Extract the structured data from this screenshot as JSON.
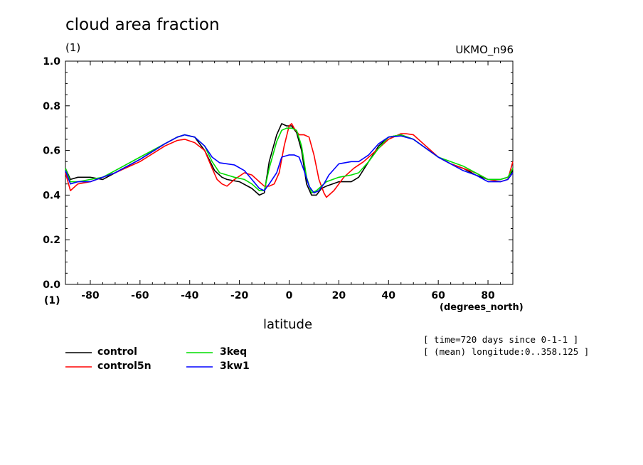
{
  "header": {
    "title": "cloud area fraction",
    "units_top": "(1)",
    "model": "UKMO_n96",
    "units_bottom": "(1)",
    "x_units": "(degrees_north)"
  },
  "info": {
    "time": "[ time=720 days since 0-1-1 ]",
    "longitude": "[ (mean) longitude:0..358.125 ]"
  },
  "chart_data": {
    "type": "line",
    "title": "cloud area fraction",
    "xlabel": "latitude",
    "ylabel": "",
    "xlim": [
      -90,
      90
    ],
    "ylim": [
      0,
      1
    ],
    "x_ticks": [
      -80,
      -60,
      -40,
      -20,
      0,
      20,
      40,
      60,
      80
    ],
    "y_ticks": [
      0.0,
      0.2,
      0.4,
      0.6,
      0.8,
      1.0
    ],
    "x_tick_labels": [
      "-80",
      "-60",
      "-40",
      "-20",
      "0",
      "20",
      "40",
      "60",
      "80"
    ],
    "y_tick_labels": [
      "0.0",
      "0.2",
      "0.4",
      "0.6",
      "0.8",
      "1.0"
    ],
    "grid": false,
    "legend_position": "bottom-left",
    "series": [
      {
        "name": "control",
        "color": "#000000",
        "x": [
          -90,
          -88,
          -85,
          -80,
          -75,
          -70,
          -60,
          -50,
          -45,
          -42,
          -38,
          -34,
          -30,
          -27,
          -25,
          -20,
          -15,
          -12,
          -10,
          -8,
          -5,
          -3,
          -1,
          1,
          3,
          5,
          7,
          9,
          11,
          13,
          15,
          20,
          25,
          28,
          32,
          36,
          40,
          45,
          50,
          55,
          60,
          65,
          70,
          75,
          80,
          85,
          88,
          90
        ],
        "y": [
          0.52,
          0.47,
          0.48,
          0.48,
          0.47,
          0.5,
          0.56,
          0.63,
          0.66,
          0.67,
          0.66,
          0.6,
          0.51,
          0.48,
          0.47,
          0.46,
          0.43,
          0.4,
          0.41,
          0.55,
          0.67,
          0.72,
          0.71,
          0.71,
          0.68,
          0.6,
          0.45,
          0.4,
          0.4,
          0.43,
          0.44,
          0.46,
          0.46,
          0.48,
          0.55,
          0.62,
          0.66,
          0.67,
          0.65,
          0.61,
          0.57,
          0.54,
          0.52,
          0.49,
          0.47,
          0.47,
          0.48,
          0.51
        ]
      },
      {
        "name": "control5n",
        "color": "#ff0000",
        "x": [
          -90,
          -88,
          -85,
          -80,
          -75,
          -70,
          -60,
          -50,
          -45,
          -42,
          -38,
          -34,
          -31,
          -29,
          -27,
          -25,
          -22,
          -18,
          -15,
          -12,
          -10,
          -8,
          -6,
          -4,
          -2,
          0,
          1,
          2,
          4,
          6,
          8,
          10,
          12,
          14,
          15,
          18,
          22,
          26,
          30,
          35,
          40,
          45,
          47,
          50,
          55,
          60,
          65,
          70,
          75,
          80,
          85,
          88,
          90
        ],
        "y": [
          0.5,
          0.42,
          0.45,
          0.46,
          0.48,
          0.5,
          0.55,
          0.62,
          0.645,
          0.65,
          0.635,
          0.6,
          0.52,
          0.47,
          0.45,
          0.44,
          0.47,
          0.5,
          0.49,
          0.46,
          0.44,
          0.44,
          0.45,
          0.5,
          0.62,
          0.71,
          0.72,
          0.7,
          0.67,
          0.67,
          0.66,
          0.58,
          0.47,
          0.41,
          0.39,
          0.42,
          0.48,
          0.52,
          0.55,
          0.6,
          0.65,
          0.675,
          0.675,
          0.67,
          0.62,
          0.57,
          0.54,
          0.52,
          0.5,
          0.47,
          0.46,
          0.47,
          0.55
        ]
      },
      {
        "name": "3keq",
        "color": "#00dd00",
        "x": [
          -90,
          -88,
          -85,
          -80,
          -75,
          -70,
          -60,
          -50,
          -45,
          -42,
          -38,
          -34,
          -31,
          -28,
          -25,
          -22,
          -18,
          -15,
          -12,
          -10,
          -8,
          -5,
          -3,
          -1,
          1,
          3,
          5,
          7,
          9,
          11,
          13,
          15,
          20,
          25,
          28,
          32,
          36,
          40,
          45,
          50,
          55,
          60,
          65,
          70,
          75,
          80,
          85,
          88,
          90
        ],
        "y": [
          0.52,
          0.46,
          0.46,
          0.47,
          0.48,
          0.51,
          0.57,
          0.63,
          0.66,
          0.67,
          0.66,
          0.62,
          0.55,
          0.5,
          0.49,
          0.48,
          0.47,
          0.45,
          0.42,
          0.42,
          0.52,
          0.64,
          0.69,
          0.7,
          0.7,
          0.69,
          0.62,
          0.48,
          0.41,
          0.42,
          0.44,
          0.46,
          0.48,
          0.49,
          0.5,
          0.55,
          0.61,
          0.66,
          0.67,
          0.65,
          0.61,
          0.57,
          0.55,
          0.53,
          0.5,
          0.47,
          0.47,
          0.48,
          0.52
        ]
      },
      {
        "name": "3kw1",
        "color": "#0000ff",
        "x": [
          -90,
          -88,
          -85,
          -80,
          -75,
          -70,
          -60,
          -50,
          -45,
          -42,
          -38,
          -34,
          -31,
          -28,
          -25,
          -22,
          -18,
          -15,
          -12,
          -10,
          -8,
          -5,
          -3,
          0,
          2,
          4,
          6,
          8,
          10,
          12,
          14,
          16,
          20,
          25,
          28,
          32,
          36,
          40,
          45,
          50,
          55,
          60,
          65,
          70,
          75,
          80,
          85,
          88,
          90
        ],
        "y": [
          0.51,
          0.45,
          0.46,
          0.46,
          0.48,
          0.5,
          0.56,
          0.63,
          0.66,
          0.67,
          0.66,
          0.62,
          0.57,
          0.545,
          0.54,
          0.535,
          0.51,
          0.47,
          0.43,
          0.42,
          0.45,
          0.5,
          0.57,
          0.58,
          0.58,
          0.57,
          0.51,
          0.44,
          0.41,
          0.42,
          0.45,
          0.49,
          0.54,
          0.55,
          0.55,
          0.58,
          0.63,
          0.66,
          0.665,
          0.65,
          0.61,
          0.57,
          0.54,
          0.51,
          0.49,
          0.46,
          0.46,
          0.47,
          0.5
        ]
      }
    ]
  },
  "legend": {
    "items": [
      {
        "label": "control",
        "color": "#000000"
      },
      {
        "label": "3keq",
        "color": "#00dd00"
      },
      {
        "label": "control5n",
        "color": "#ff0000"
      },
      {
        "label": "3kw1",
        "color": "#0000ff"
      }
    ]
  }
}
